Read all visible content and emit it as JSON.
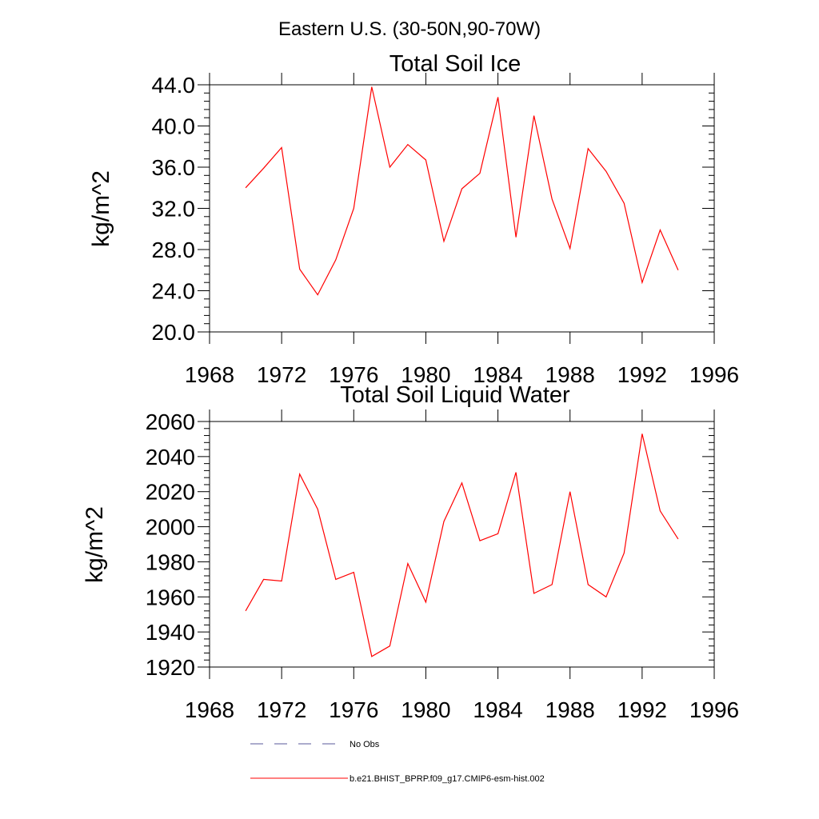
{
  "figure_title": "Eastern U.S. (30-50N,90-70W)",
  "colors": {
    "series": "#ff0000",
    "obs": "#5a5a9a",
    "axis": "#000000"
  },
  "chart_data": [
    {
      "type": "line",
      "title": "Total Soil Ice",
      "ylabel": "kg/m^2",
      "xlabel": "",
      "xlim": [
        1968,
        1996
      ],
      "ylim": [
        20,
        44
      ],
      "xticks": [
        1968,
        1972,
        1976,
        1980,
        1984,
        1988,
        1992,
        1996
      ],
      "xtick_labels": [
        "1968",
        "1972",
        "1976",
        "1980",
        "1984",
        "1988",
        "1992",
        "1996"
      ],
      "yticks": [
        20,
        24,
        28,
        32,
        36,
        40,
        44
      ],
      "ytick_labels": [
        "20.0",
        "24.0",
        "28.0",
        "32.0",
        "36.0",
        "40.0",
        "44.0"
      ],
      "x": [
        1970,
        1971,
        1972,
        1973,
        1974,
        1975,
        1976,
        1977,
        1978,
        1979,
        1980,
        1981,
        1982,
        1983,
        1984,
        1985,
        1986,
        1987,
        1988,
        1989,
        1990,
        1991,
        1992,
        1993,
        1994
      ],
      "series": [
        {
          "name": "b.e21.BHIST_BPRP.f09_g17.CMIP6-esm-hist.002",
          "values": [
            34.0,
            35.9,
            37.9,
            26.1,
            23.6,
            27.0,
            32.0,
            43.8,
            36.0,
            38.2,
            36.7,
            28.8,
            33.9,
            35.4,
            42.8,
            29.2,
            41.0,
            32.9,
            28.1,
            37.8,
            35.6,
            32.5,
            24.8,
            29.9,
            26.0
          ]
        }
      ]
    },
    {
      "type": "line",
      "title": "Total Soil Liquid Water",
      "ylabel": "kg/m^2",
      "xlabel": "",
      "xlim": [
        1968,
        1996
      ],
      "ylim": [
        1920,
        2060
      ],
      "xticks": [
        1968,
        1972,
        1976,
        1980,
        1984,
        1988,
        1992,
        1996
      ],
      "xtick_labels": [
        "1968",
        "1972",
        "1976",
        "1980",
        "1984",
        "1988",
        "1992",
        "1996"
      ],
      "yticks": [
        1920,
        1940,
        1960,
        1980,
        2000,
        2020,
        2040,
        2060
      ],
      "ytick_labels": [
        "1920",
        "1940",
        "1960",
        "1980",
        "2000",
        "2020",
        "2040",
        "2060"
      ],
      "x": [
        1970,
        1971,
        1972,
        1973,
        1974,
        1975,
        1976,
        1977,
        1978,
        1979,
        1980,
        1981,
        1982,
        1983,
        1984,
        1985,
        1986,
        1987,
        1988,
        1989,
        1990,
        1991,
        1992,
        1993,
        1994
      ],
      "series": [
        {
          "name": "b.e21.BHIST_BPRP.f09_g17.CMIP6-esm-hist.002",
          "values": [
            1952,
            1970,
            1969,
            2030,
            2010,
            1970,
            1974,
            1926,
            1932,
            1979,
            1957,
            2003,
            2025,
            1992,
            1996,
            2031,
            1962,
            1967,
            2020,
            1967,
            1960,
            1985,
            2053,
            2009,
            1993
          ]
        }
      ]
    }
  ],
  "legend": {
    "placement": "bottom-center",
    "entries": [
      {
        "label": "No Obs",
        "style": "dashed"
      },
      {
        "label": "b.e21.BHIST_BPRP.f09_g17.CMIP6-esm-hist.002",
        "style": "solid"
      }
    ]
  }
}
